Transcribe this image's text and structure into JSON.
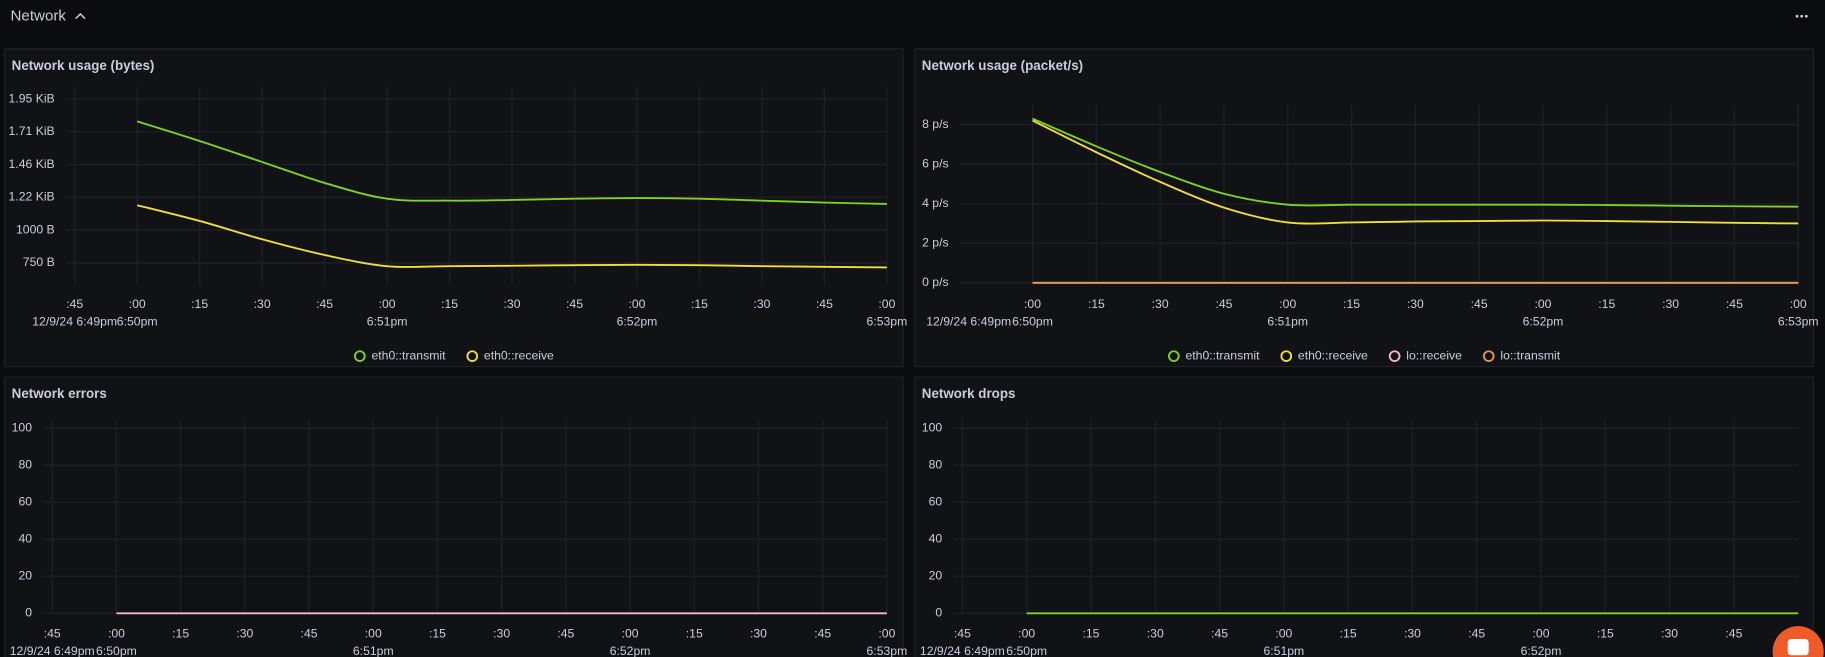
{
  "header": {
    "title": "Network"
  },
  "chart_data": [
    {
      "type": "line",
      "title": "Network usage (bytes)",
      "x": [
        60,
        75,
        90,
        105,
        120,
        135,
        150,
        165,
        180,
        195,
        210,
        225,
        240
      ],
      "xlim": [
        43,
        240
      ],
      "xticks": [
        {
          "value": 45,
          "label": ":45"
        },
        {
          "value": 60,
          "label": ":00"
        },
        {
          "value": 75,
          "label": ":15"
        },
        {
          "value": 90,
          "label": ":30"
        },
        {
          "value": 105,
          "label": ":45"
        },
        {
          "value": 120,
          "label": ":00"
        },
        {
          "value": 135,
          "label": ":15"
        },
        {
          "value": 150,
          "label": ":30"
        },
        {
          "value": 165,
          "label": ":45"
        },
        {
          "value": 180,
          "label": ":00"
        },
        {
          "value": 195,
          "label": ":15"
        },
        {
          "value": 210,
          "label": ":30"
        },
        {
          "value": 225,
          "label": ":45"
        },
        {
          "value": 240,
          "label": ":00"
        }
      ],
      "xtick_sublabels": [
        {
          "value": 45,
          "label": "12/9/24 6:49pm"
        },
        {
          "value": 60,
          "label": "6:50pm"
        },
        {
          "value": 120,
          "label": "6:51pm"
        },
        {
          "value": 180,
          "label": "6:52pm"
        },
        {
          "value": 240,
          "label": "6:53pm"
        }
      ],
      "ylim": [
        580,
        2090
      ],
      "yticks": [
        {
          "value": 750,
          "label": "750 B"
        },
        {
          "value": 1000,
          "label": "1000 B"
        },
        {
          "value": 1250,
          "label": "1.22 KiB"
        },
        {
          "value": 1500,
          "label": "1.46 KiB"
        },
        {
          "value": 1750,
          "label": "1.71 KiB"
        },
        {
          "value": 2000,
          "label": "1.95 KiB"
        }
      ],
      "grid": true,
      "legend": "bottom",
      "series": [
        {
          "name": "eth0::transmit",
          "color": "#7ed321",
          "values": [
            1830,
            1680,
            1520,
            1360,
            1240,
            1225,
            1230,
            1240,
            1245,
            1240,
            1225,
            1210,
            1200
          ]
        },
        {
          "name": "eth0::receive",
          "color": "#f2de3a",
          "values": [
            1190,
            1070,
            930,
            810,
            725,
            725,
            728,
            732,
            735,
            732,
            725,
            720,
            715
          ]
        }
      ]
    },
    {
      "type": "line",
      "title": "Network usage (packet/s)",
      "x": [
        60,
        75,
        90,
        105,
        120,
        135,
        150,
        165,
        180,
        195,
        210,
        225,
        240
      ],
      "xlim": [
        43,
        240
      ],
      "xticks": [
        {
          "value": 60,
          "label": ":00"
        },
        {
          "value": 75,
          "label": ":15"
        },
        {
          "value": 90,
          "label": ":30"
        },
        {
          "value": 105,
          "label": ":45"
        },
        {
          "value": 120,
          "label": ":00"
        },
        {
          "value": 135,
          "label": ":15"
        },
        {
          "value": 150,
          "label": ":30"
        },
        {
          "value": 165,
          "label": ":45"
        },
        {
          "value": 180,
          "label": ":00"
        },
        {
          "value": 195,
          "label": ":15"
        },
        {
          "value": 210,
          "label": ":30"
        },
        {
          "value": 225,
          "label": ":45"
        },
        {
          "value": 240,
          "label": ":00"
        }
      ],
      "xtick_sublabels": [
        {
          "value": 45,
          "label": "12/9/24 6:49pm"
        },
        {
          "value": 60,
          "label": "6:50pm"
        },
        {
          "value": 120,
          "label": "6:51pm"
        },
        {
          "value": 180,
          "label": "6:52pm"
        },
        {
          "value": 240,
          "label": "6:53pm"
        }
      ],
      "ylim": [
        0,
        9
      ],
      "yticks": [
        {
          "value": 0,
          "label": "0 p/s"
        },
        {
          "value": 2,
          "label": "2 p/s"
        },
        {
          "value": 4,
          "label": "4 p/s"
        },
        {
          "value": 6,
          "label": "6 p/s"
        },
        {
          "value": 8,
          "label": "8 p/s"
        }
      ],
      "grid": true,
      "legend": "bottom",
      "series": [
        {
          "name": "eth0::transmit",
          "color": "#7ed321",
          "values": [
            8.3,
            6.9,
            5.6,
            4.5,
            3.95,
            3.95,
            3.95,
            3.95,
            3.95,
            3.93,
            3.9,
            3.87,
            3.85
          ]
        },
        {
          "name": "eth0::receive",
          "color": "#f2de3a",
          "values": [
            8.2,
            6.6,
            5.1,
            3.8,
            3.05,
            3.05,
            3.1,
            3.12,
            3.15,
            3.12,
            3.08,
            3.03,
            3.0
          ]
        },
        {
          "name": "lo::receive",
          "color": "#f2b8c6",
          "values": [
            0,
            0,
            0,
            0,
            0,
            0,
            0,
            0,
            0,
            0,
            0,
            0,
            0
          ]
        },
        {
          "name": "lo::transmit",
          "color": "#e69155",
          "values": [
            0,
            0,
            0,
            0,
            0,
            0,
            0,
            0,
            0,
            0,
            0,
            0,
            0
          ]
        }
      ]
    },
    {
      "type": "line",
      "title": "Network errors",
      "x": [
        60,
        75,
        90,
        105,
        120,
        135,
        150,
        165,
        180,
        195,
        210,
        225,
        240
      ],
      "xlim": [
        43,
        240
      ],
      "xticks": [
        {
          "value": 45,
          "label": ":45"
        },
        {
          "value": 60,
          "label": ":00"
        },
        {
          "value": 75,
          "label": ":15"
        },
        {
          "value": 90,
          "label": ":30"
        },
        {
          "value": 105,
          "label": ":45"
        },
        {
          "value": 120,
          "label": ":00"
        },
        {
          "value": 135,
          "label": ":15"
        },
        {
          "value": 150,
          "label": ":30"
        },
        {
          "value": 165,
          "label": ":45"
        },
        {
          "value": 180,
          "label": ":00"
        },
        {
          "value": 195,
          "label": ":15"
        },
        {
          "value": 210,
          "label": ":30"
        },
        {
          "value": 225,
          "label": ":45"
        },
        {
          "value": 240,
          "label": ":00"
        }
      ],
      "xtick_sublabels": [
        {
          "value": 45,
          "label": "12/9/24 6:49pm"
        },
        {
          "value": 60,
          "label": "6:50pm"
        },
        {
          "value": 120,
          "label": "6:51pm"
        },
        {
          "value": 180,
          "label": "6:52pm"
        },
        {
          "value": 240,
          "label": "6:53pm"
        }
      ],
      "ylim": [
        0,
        105
      ],
      "yticks": [
        0,
        20,
        40,
        60,
        80,
        100
      ],
      "grid": true,
      "series": [
        {
          "color": "#f2b8c6",
          "values": [
            0,
            0,
            0,
            0,
            0,
            0,
            0,
            0,
            0,
            0,
            0,
            0,
            0
          ]
        }
      ]
    },
    {
      "type": "line",
      "title": "Network drops",
      "x": [
        60,
        75,
        90,
        105,
        120,
        135,
        150,
        165,
        180,
        195,
        210,
        225,
        240
      ],
      "xlim": [
        43,
        240
      ],
      "xticks": [
        {
          "value": 45,
          "label": ":45"
        },
        {
          "value": 60,
          "label": ":00"
        },
        {
          "value": 75,
          "label": ":15"
        },
        {
          "value": 90,
          "label": ":30"
        },
        {
          "value": 105,
          "label": ":45"
        },
        {
          "value": 120,
          "label": ":00"
        },
        {
          "value": 135,
          "label": ":15"
        },
        {
          "value": 150,
          "label": ":30"
        },
        {
          "value": 165,
          "label": ":45"
        },
        {
          "value": 180,
          "label": ":00"
        },
        {
          "value": 195,
          "label": ":15"
        },
        {
          "value": 210,
          "label": ":30"
        },
        {
          "value": 225,
          "label": ":45"
        }
      ],
      "xtick_sublabels": [
        {
          "value": 45,
          "label": "12/9/24 6:49pm"
        },
        {
          "value": 60,
          "label": "6:50pm"
        },
        {
          "value": 120,
          "label": "6:51pm"
        },
        {
          "value": 180,
          "label": "6:52pm"
        }
      ],
      "ylim": [
        0,
        105
      ],
      "yticks": [
        0,
        20,
        40,
        60,
        80,
        100
      ],
      "grid": true,
      "series": [
        {
          "color": "#7ed321",
          "values": [
            0,
            0,
            0,
            0,
            0,
            0,
            0,
            0,
            0,
            0,
            0,
            0,
            0
          ]
        }
      ]
    }
  ]
}
